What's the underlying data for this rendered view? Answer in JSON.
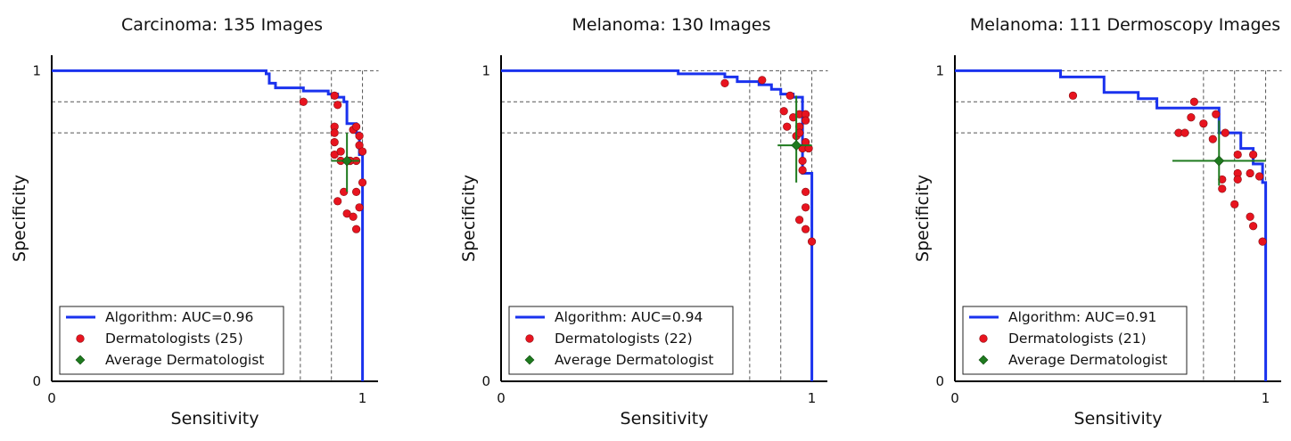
{
  "chart_data": [
    {
      "type": "line",
      "title": "Carcinoma: 135 Images",
      "xlabel": "Sensitivity",
      "ylabel": "Specificity",
      "xlim": [
        0,
        1.05
      ],
      "ylim": [
        0,
        1.05
      ],
      "xticks": [
        "0",
        "1"
      ],
      "yticks": [
        "0",
        "1"
      ],
      "reference_lines": {
        "sensitivity": [
          0.8,
          0.9,
          1.0
        ],
        "specificity": [
          0.8,
          0.9,
          1.0
        ]
      },
      "legend": {
        "placement": "lower-left",
        "algorithm": "Algorithm: AUC=0.96",
        "dermatologists": "Dermatologists (25)",
        "average": "Average Dermatologist"
      },
      "series": [
        {
          "name": "Algorithm: AUC=0.96",
          "points": [
            [
              0.0,
              1.0
            ],
            [
              0.69,
              1.0
            ],
            [
              0.69,
              0.99
            ],
            [
              0.7,
              0.99
            ],
            [
              0.7,
              0.96
            ],
            [
              0.72,
              0.96
            ],
            [
              0.72,
              0.945
            ],
            [
              0.81,
              0.945
            ],
            [
              0.81,
              0.935
            ],
            [
              0.89,
              0.935
            ],
            [
              0.89,
              0.925
            ],
            [
              0.92,
              0.925
            ],
            [
              0.92,
              0.915
            ],
            [
              0.94,
              0.915
            ],
            [
              0.94,
              0.9
            ],
            [
              0.95,
              0.9
            ],
            [
              0.95,
              0.83
            ],
            [
              0.98,
              0.83
            ],
            [
              0.98,
              0.8
            ],
            [
              0.99,
              0.8
            ],
            [
              0.99,
              0.73
            ],
            [
              1.0,
              0.73
            ],
            [
              1.0,
              0.0
            ]
          ]
        },
        {
          "name": "Dermatologists (25)",
          "points": [
            [
              0.81,
              0.9
            ],
            [
              0.91,
              0.92
            ],
            [
              0.92,
              0.89
            ],
            [
              0.91,
              0.82
            ],
            [
              0.91,
              0.8
            ],
            [
              0.97,
              0.81
            ],
            [
              0.98,
              0.82
            ],
            [
              0.99,
              0.79
            ],
            [
              0.91,
              0.77
            ],
            [
              0.99,
              0.76
            ],
            [
              1.0,
              0.74
            ],
            [
              0.91,
              0.73
            ],
            [
              0.93,
              0.74
            ],
            [
              0.96,
              0.71
            ],
            [
              0.98,
              0.71
            ],
            [
              0.94,
              0.61
            ],
            [
              0.98,
              0.61
            ],
            [
              1.0,
              0.64
            ],
            [
              0.92,
              0.58
            ],
            [
              0.95,
              0.54
            ],
            [
              0.99,
              0.56
            ],
            [
              0.97,
              0.53
            ],
            [
              0.98,
              0.49
            ],
            [
              0.96,
              0.71
            ],
            [
              0.93,
              0.71
            ]
          ]
        },
        {
          "name": "Average Dermatologist",
          "points": [
            [
              0.95,
              0.71
            ]
          ],
          "x_err": [
            0.05,
            0.04
          ],
          "y_err": [
            0.09,
            0.1
          ]
        }
      ]
    },
    {
      "type": "line",
      "title": "Melanoma: 130 Images",
      "xlabel": "Sensitivity",
      "ylabel": "Specificity",
      "xlim": [
        0,
        1.05
      ],
      "ylim": [
        0,
        1.05
      ],
      "xticks": [
        "0",
        "1"
      ],
      "yticks": [
        "0",
        "1"
      ],
      "reference_lines": {
        "sensitivity": [
          0.8,
          0.9,
          1.0
        ],
        "specificity": [
          0.8,
          0.9,
          1.0
        ]
      },
      "legend": {
        "placement": "lower-left",
        "algorithm": "Algorithm: AUC=0.94",
        "dermatologists": "Dermatologists (22)",
        "average": "Average Dermatologist"
      },
      "series": [
        {
          "name": "Algorithm: AUC=0.94",
          "points": [
            [
              0.0,
              1.0
            ],
            [
              0.57,
              1.0
            ],
            [
              0.57,
              0.99
            ],
            [
              0.72,
              0.99
            ],
            [
              0.72,
              0.98
            ],
            [
              0.76,
              0.98
            ],
            [
              0.76,
              0.965
            ],
            [
              0.83,
              0.965
            ],
            [
              0.83,
              0.955
            ],
            [
              0.87,
              0.955
            ],
            [
              0.87,
              0.94
            ],
            [
              0.9,
              0.94
            ],
            [
              0.9,
              0.925
            ],
            [
              0.94,
              0.925
            ],
            [
              0.94,
              0.915
            ],
            [
              0.97,
              0.915
            ],
            [
              0.97,
              0.67
            ],
            [
              1.0,
              0.67
            ],
            [
              1.0,
              0.0
            ]
          ]
        },
        {
          "name": "Dermatologists (22)",
          "points": [
            [
              0.72,
              0.96
            ],
            [
              0.84,
              0.97
            ],
            [
              0.93,
              0.92
            ],
            [
              0.91,
              0.87
            ],
            [
              0.96,
              0.86
            ],
            [
              0.98,
              0.86
            ],
            [
              0.98,
              0.84
            ],
            [
              0.92,
              0.82
            ],
            [
              0.96,
              0.82
            ],
            [
              0.95,
              0.79
            ],
            [
              0.98,
              0.77
            ],
            [
              0.97,
              0.75
            ],
            [
              0.99,
              0.75
            ],
            [
              0.97,
              0.71
            ],
            [
              0.97,
              0.68
            ],
            [
              0.98,
              0.61
            ],
            [
              0.98,
              0.56
            ],
            [
              0.96,
              0.52
            ],
            [
              0.98,
              0.49
            ],
            [
              1.0,
              0.45
            ],
            [
              0.94,
              0.85
            ],
            [
              0.96,
              0.8
            ]
          ]
        },
        {
          "name": "Average Dermatologist",
          "points": [
            [
              0.95,
              0.76
            ]
          ],
          "x_err": [
            0.06,
            0.05
          ],
          "y_err": [
            0.16,
            0.12
          ]
        }
      ]
    },
    {
      "type": "line",
      "title": "Melanoma: 111 Dermoscopy Images",
      "xlabel": "Sensitivity",
      "ylabel": "Specificity",
      "xlim": [
        0,
        1.05
      ],
      "ylim": [
        0,
        1.05
      ],
      "xticks": [
        "0",
        "1"
      ],
      "yticks": [
        "0",
        "1"
      ],
      "reference_lines": {
        "sensitivity": [
          0.8,
          0.9,
          1.0
        ],
        "specificity": [
          0.8,
          0.9,
          1.0
        ]
      },
      "legend": {
        "placement": "lower-left",
        "algorithm": "Algorithm: AUC=0.91",
        "dermatologists": "Dermatologists (21)",
        "average": "Average Dermatologist"
      },
      "series": [
        {
          "name": "Algorithm: AUC=0.91",
          "points": [
            [
              0.0,
              1.0
            ],
            [
              0.34,
              1.0
            ],
            [
              0.34,
              0.98
            ],
            [
              0.48,
              0.98
            ],
            [
              0.48,
              0.93
            ],
            [
              0.59,
              0.93
            ],
            [
              0.59,
              0.91
            ],
            [
              0.65,
              0.91
            ],
            [
              0.65,
              0.88
            ],
            [
              0.85,
              0.88
            ],
            [
              0.85,
              0.8
            ],
            [
              0.92,
              0.8
            ],
            [
              0.92,
              0.75
            ],
            [
              0.96,
              0.75
            ],
            [
              0.96,
              0.7
            ],
            [
              0.99,
              0.7
            ],
            [
              0.99,
              0.64
            ],
            [
              1.0,
              0.64
            ],
            [
              1.0,
              0.0
            ]
          ]
        },
        {
          "name": "Dermatologists (21)",
          "points": [
            [
              0.38,
              0.92
            ],
            [
              0.77,
              0.9
            ],
            [
              0.76,
              0.85
            ],
            [
              0.84,
              0.86
            ],
            [
              0.8,
              0.83
            ],
            [
              0.72,
              0.8
            ],
            [
              0.74,
              0.8
            ],
            [
              0.83,
              0.78
            ],
            [
              0.87,
              0.8
            ],
            [
              0.96,
              0.73
            ],
            [
              0.91,
              0.73
            ],
            [
              0.91,
              0.67
            ],
            [
              0.95,
              0.67
            ],
            [
              0.98,
              0.66
            ],
            [
              0.91,
              0.65
            ],
            [
              0.86,
              0.65
            ],
            [
              0.86,
              0.62
            ],
            [
              0.9,
              0.57
            ],
            [
              0.95,
              0.53
            ],
            [
              0.96,
              0.5
            ],
            [
              0.99,
              0.45
            ]
          ]
        },
        {
          "name": "Average Dermatologist",
          "points": [
            [
              0.85,
              0.71
            ]
          ],
          "x_err": [
            0.15,
            0.15
          ],
          "y_err": [
            0.13,
            0.08
          ]
        }
      ]
    }
  ],
  "colors": {
    "algorithm": "#1a32ee",
    "dermatologists": "#e8141f",
    "dermatologist_edge": "#8a0d12",
    "average": "#1e7a1e",
    "reference_line": "#555555",
    "axis": "#000000"
  }
}
